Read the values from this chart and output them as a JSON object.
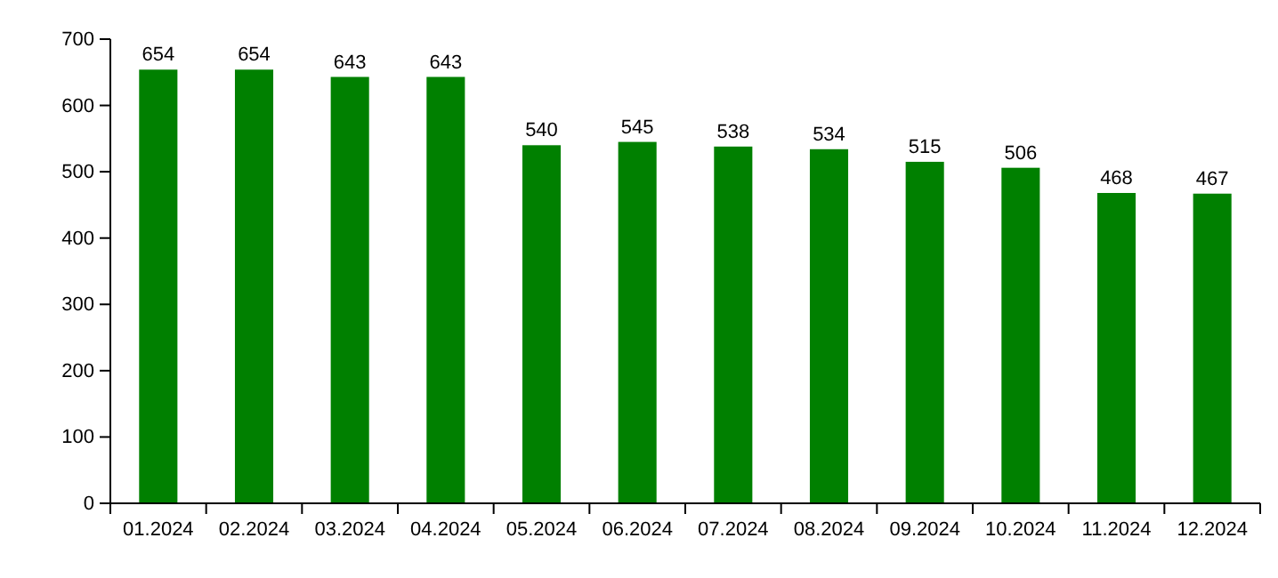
{
  "chart_data": {
    "type": "bar",
    "categories": [
      "01.2024",
      "02.2024",
      "03.2024",
      "04.2024",
      "05.2024",
      "06.2024",
      "07.2024",
      "08.2024",
      "09.2024",
      "10.2024",
      "11.2024",
      "12.2024"
    ],
    "values": [
      654,
      654,
      643,
      643,
      540,
      545,
      538,
      534,
      515,
      506,
      468,
      467
    ],
    "color": "#008000",
    "ylim": [
      0,
      700
    ],
    "yticks": [
      0,
      100,
      200,
      300,
      400,
      500,
      600,
      700
    ],
    "grid": false,
    "data_labels": true
  }
}
